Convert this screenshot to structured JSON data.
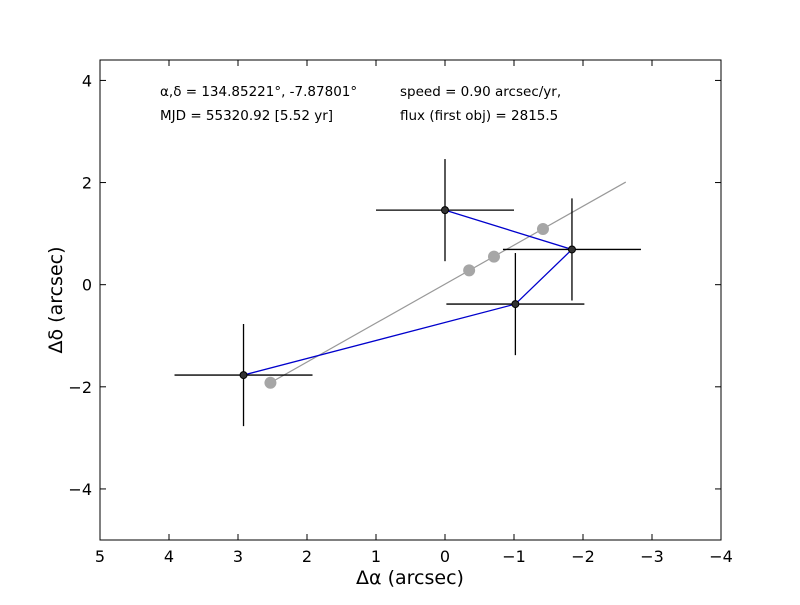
{
  "chart_data": {
    "type": "scatter",
    "xlabel": "Δα (arcsec)",
    "ylabel": "Δδ (arcsec)",
    "xlim": [
      5,
      -4
    ],
    "ylim": [
      -5,
      4.4
    ],
    "x_ticks": [
      5,
      4,
      3,
      2,
      1,
      0,
      -1,
      -2,
      -3,
      -4
    ],
    "x_tick_labels": [
      "5",
      "4",
      "3",
      "2",
      "1",
      "0",
      "−1",
      "−2",
      "−3",
      "−4"
    ],
    "y_ticks": [
      -4,
      -2,
      0,
      2,
      4
    ],
    "y_tick_labels": [
      "−4",
      "−2",
      "0",
      "2",
      "4"
    ],
    "grid": false,
    "annotations": {
      "coords": "α,δ = 134.85221°, -7.87801°",
      "mjd": "MJD = 55320.92 [5.52 yr]",
      "speed": "speed = 0.90 arcsec/yr,",
      "flux": "flux (first obj) = 2815.5"
    },
    "series": [
      {
        "kind": "observations",
        "color": "#000000",
        "line_color": "#0000cc",
        "points": [
          {
            "x": 2.92,
            "y": -1.77,
            "xerr": 1.0,
            "yerr": 1.0
          },
          {
            "x": -1.02,
            "y": -0.38,
            "xerr": 1.0,
            "yerr": 1.0
          },
          {
            "x": -1.84,
            "y": 0.69,
            "xerr": 1.0,
            "yerr": 1.0
          },
          {
            "x": 0.0,
            "y": 1.46,
            "xerr": 1.0,
            "yerr": 1.0
          }
        ]
      },
      {
        "kind": "predicted",
        "color": "#a6a6a6",
        "points": [
          {
            "x": 2.53,
            "y": -1.92
          },
          {
            "x": -0.35,
            "y": 0.28
          },
          {
            "x": -0.71,
            "y": 0.55
          },
          {
            "x": -1.42,
            "y": 1.09
          }
        ]
      },
      {
        "kind": "fit-line",
        "color": "#999999",
        "points": [
          {
            "x": 2.53,
            "y": -1.92
          },
          {
            "x": -2.62,
            "y": 2.01
          }
        ]
      }
    ]
  }
}
